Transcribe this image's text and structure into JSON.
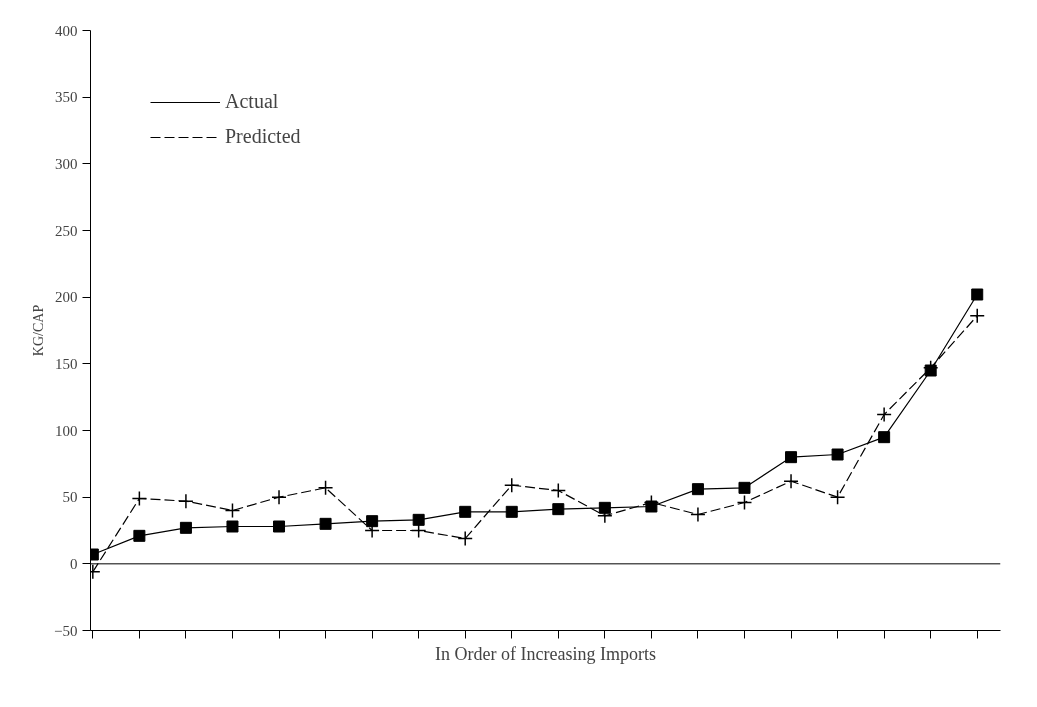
{
  "chart_data": {
    "type": "line",
    "xlabel": "In Order of Increasing Imports",
    "ylabel": "KG/CAP",
    "categories": [
      null,
      null,
      null,
      null,
      null,
      null,
      null,
      null,
      null,
      null,
      null,
      null,
      null,
      null,
      null,
      null,
      null,
      null,
      null,
      null
    ],
    "series": [
      {
        "name": "Actual",
        "color": "#000000",
        "marker": "square",
        "line_style": "solid",
        "values": [
          7,
          21,
          27,
          28,
          28,
          30,
          32,
          33,
          39,
          39,
          41,
          42,
          43,
          56,
          57,
          80,
          82,
          95,
          145,
          202
        ]
      },
      {
        "name": "Predicted",
        "color": "#000000",
        "marker": "cross",
        "line_style": "dashed",
        "values": [
          -6,
          49,
          47,
          40,
          50,
          57,
          25,
          25,
          19,
          59,
          55,
          36,
          46,
          37,
          46,
          62,
          50,
          112,
          147,
          186
        ]
      }
    ],
    "ylim": [
      -50,
      400
    ],
    "yticks": [
      -50,
      0,
      50,
      100,
      150,
      200,
      250,
      300,
      350,
      400
    ],
    "ref_lines": [
      {
        "axis": "y",
        "value": 0,
        "label": null,
        "color": "#000000"
      }
    ],
    "grid": false,
    "legend": "top left"
  }
}
